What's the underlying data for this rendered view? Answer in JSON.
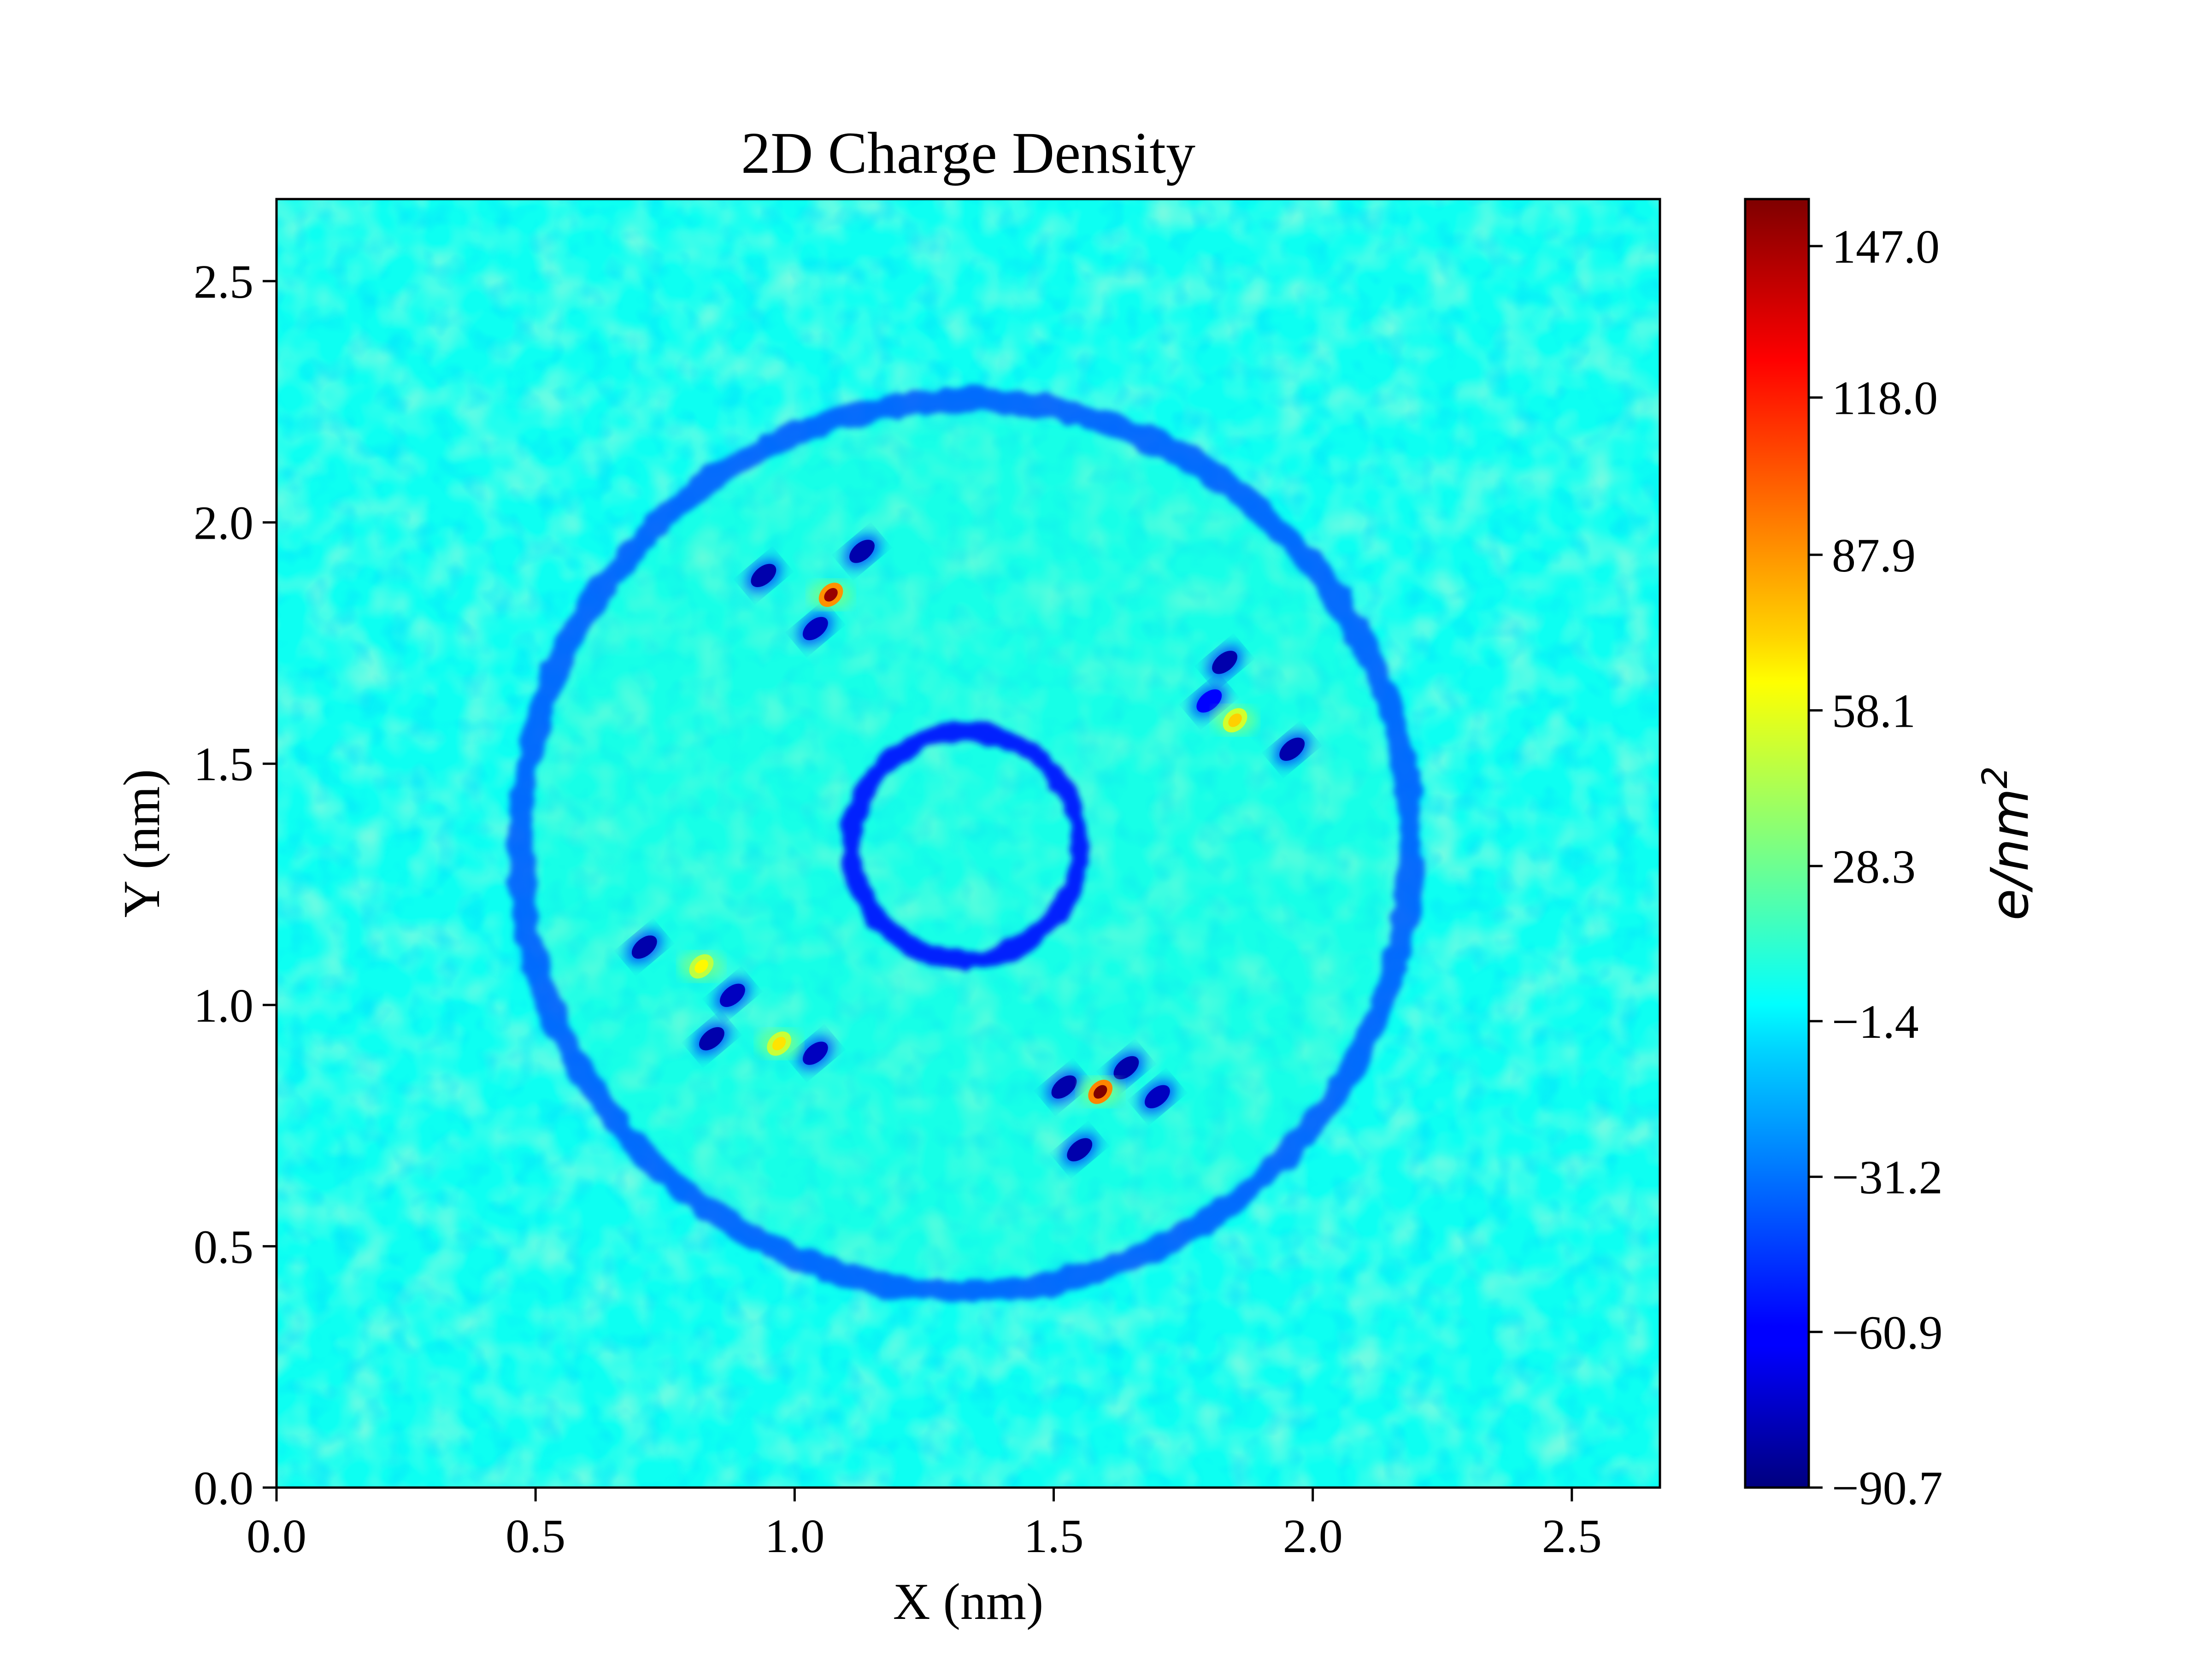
{
  "chart_data": {
    "type": "heatmap",
    "title": "2D Charge Density",
    "xlabel": "X (nm)",
    "ylabel": "Y (nm)",
    "xlim": [
      0.0,
      2.67
    ],
    "ylim": [
      0.0,
      2.67
    ],
    "x_ticks": [
      "0.0",
      "0.5",
      "1.0",
      "1.5",
      "2.0",
      "2.5"
    ],
    "y_ticks": [
      "0.0",
      "0.5",
      "1.0",
      "1.5",
      "2.0",
      "2.5"
    ],
    "x_tick_values": [
      0.0,
      0.5,
      1.0,
      1.5,
      2.0,
      2.5
    ],
    "y_tick_values": [
      0.0,
      0.5,
      1.0,
      1.5,
      2.0,
      2.5
    ],
    "colormap": "jet",
    "background_level": 5,
    "colorbar": {
      "label_base": "e/nm",
      "label_exponent": "2",
      "range": [
        -90.7,
        156.0
      ],
      "ticks": [
        "147.0",
        "118.0",
        "87.9",
        "58.1",
        "28.3",
        "−1.4",
        "−31.2",
        "−60.9",
        "−90.7"
      ],
      "tick_values": [
        147.0,
        118.0,
        87.9,
        58.1,
        28.3,
        -1.4,
        -31.2,
        -60.9,
        -90.7
      ]
    },
    "rings": [
      {
        "name": "outer ring",
        "center": [
          1.33,
          1.33
        ],
        "radius": 0.86,
        "value": -40
      },
      {
        "name": "inner ring",
        "center": [
          1.33,
          1.33
        ],
        "radius": 0.22,
        "value": -55
      }
    ],
    "inner_disk": {
      "center": [
        1.33,
        1.33
      ],
      "radius": 0.84,
      "value": 12
    },
    "clusters": [
      {
        "positive": {
          "x": 1.07,
          "y": 1.85,
          "value": 150
        },
        "negatives": [
          {
            "x": 0.94,
            "y": 1.89,
            "value": -80
          },
          {
            "x": 1.13,
            "y": 1.94,
            "value": -80
          },
          {
            "x": 1.04,
            "y": 1.78,
            "value": -75
          }
        ]
      },
      {
        "positive": {
          "x": 1.85,
          "y": 1.59,
          "value": 75
        },
        "negatives": [
          {
            "x": 1.83,
            "y": 1.71,
            "value": -80
          },
          {
            "x": 1.96,
            "y": 1.53,
            "value": -80
          },
          {
            "x": 1.8,
            "y": 1.63,
            "value": -60
          }
        ]
      },
      {
        "positive": {
          "x": 0.82,
          "y": 1.08,
          "value": 65
        },
        "negatives": [
          {
            "x": 0.71,
            "y": 1.12,
            "value": -80
          },
          {
            "x": 0.88,
            "y": 1.02,
            "value": -75
          }
        ]
      },
      {
        "positive": {
          "x": 0.97,
          "y": 0.92,
          "value": 70
        },
        "negatives": [
          {
            "x": 0.84,
            "y": 0.93,
            "value": -80
          },
          {
            "x": 1.04,
            "y": 0.9,
            "value": -75
          }
        ]
      },
      {
        "positive": {
          "x": 1.59,
          "y": 0.82,
          "value": 156
        },
        "negatives": [
          {
            "x": 1.52,
            "y": 0.83,
            "value": -80
          },
          {
            "x": 1.64,
            "y": 0.87,
            "value": -80
          },
          {
            "x": 1.7,
            "y": 0.81,
            "value": -75
          },
          {
            "x": 1.55,
            "y": 0.7,
            "value": -80
          }
        ]
      }
    ]
  }
}
